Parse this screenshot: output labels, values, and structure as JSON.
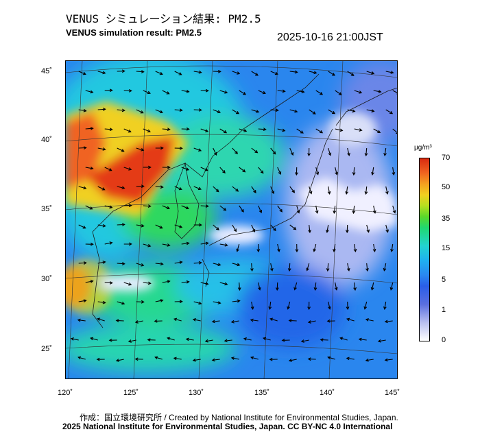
{
  "header": {
    "title_jp": "VENUS シミュレーション結果: PM2.5",
    "title_en": "VENUS simulation result: PM2.5",
    "timestamp": "2025-10-16 21:00JST"
  },
  "map": {
    "lat_labels": [
      "45˚",
      "40˚",
      "35˚",
      "30˚",
      "25˚"
    ],
    "lon_labels": [
      "120˚",
      "125˚",
      "130˚",
      "135˚",
      "140˚",
      "145˚"
    ],
    "colors": {
      "land_line": "#1a1a1a",
      "grid": "#333333",
      "arrow": "#000000"
    }
  },
  "colorbar": {
    "unit": "μg/m³",
    "labels": [
      "70",
      "50",
      "35",
      "15",
      "5",
      "1",
      "0"
    ]
  },
  "footer": {
    "credit_jp": "作成：国立環境研究所 / Created by National Institute for Environmental Studies, Japan.",
    "copyright": "2025 National Institute for Environmental Studies, Japan. CC BY-NC 4.0 International"
  }
}
